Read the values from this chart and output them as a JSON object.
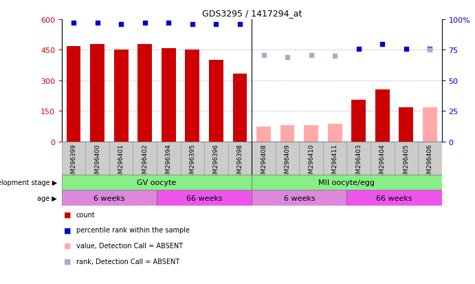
{
  "title": "GDS3295 / 1417294_at",
  "samples": [
    "GSM296399",
    "GSM296400",
    "GSM296401",
    "GSM296402",
    "GSM296394",
    "GSM296395",
    "GSM296396",
    "GSM296398",
    "GSM296408",
    "GSM296409",
    "GSM296410",
    "GSM296411",
    "GSM296403",
    "GSM296404",
    "GSM296405",
    "GSM296406"
  ],
  "count_values": [
    470,
    480,
    450,
    480,
    460,
    450,
    400,
    335,
    null,
    null,
    null,
    null,
    205,
    255,
    170,
    null
  ],
  "count_absent_values": [
    null,
    null,
    null,
    null,
    null,
    null,
    null,
    null,
    75,
    80,
    80,
    88,
    null,
    null,
    null,
    170
  ],
  "rank_values": [
    97,
    97,
    96,
    97,
    97,
    96,
    96,
    96,
    null,
    null,
    null,
    null,
    76,
    80,
    76,
    76
  ],
  "rank_absent_values": [
    null,
    null,
    null,
    null,
    null,
    null,
    null,
    null,
    71,
    69,
    71,
    70,
    null,
    null,
    null,
    75
  ],
  "ylim_left": [
    0,
    600
  ],
  "ylim_right": [
    0,
    100
  ],
  "yticks_left": [
    0,
    150,
    300,
    450,
    600
  ],
  "yticks_right": [
    0,
    25,
    50,
    75,
    100
  ],
  "bar_color_present": "#cc0000",
  "bar_color_absent": "#ffaaaa",
  "rank_color_present": "#0000cc",
  "rank_color_absent": "#aaaacc",
  "grid_color": "#aaaaaa",
  "label_bg": "#cccccc",
  "dev_stage_color": "#88ee88",
  "age_color_light": "#dd88dd",
  "age_color_dark": "#ee55ee",
  "dev_groups": [
    {
      "label": "GV oocyte",
      "start": 0,
      "end": 7
    },
    {
      "label": "MII oocyte/egg",
      "start": 8,
      "end": 15
    }
  ],
  "age_groups": [
    {
      "label": "6 weeks",
      "start": 0,
      "end": 3,
      "dark": false
    },
    {
      "label": "66 weeks",
      "start": 4,
      "end": 7,
      "dark": true
    },
    {
      "label": "6 weeks",
      "start": 8,
      "end": 11,
      "dark": false
    },
    {
      "label": "66 weeks",
      "start": 12,
      "end": 15,
      "dark": true
    }
  ],
  "legend_items": [
    {
      "label": "count",
      "color": "#cc0000"
    },
    {
      "label": "percentile rank within the sample",
      "color": "#0000cc"
    },
    {
      "label": "value, Detection Call = ABSENT",
      "color": "#ffaaaa"
    },
    {
      "label": "rank, Detection Call = ABSENT",
      "color": "#aaaacc"
    }
  ]
}
